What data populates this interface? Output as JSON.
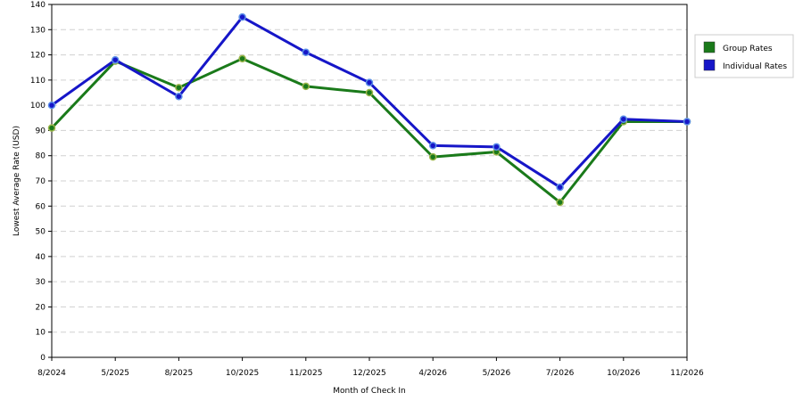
{
  "chart_data": {
    "type": "line",
    "title": "",
    "xlabel": "Month of Check In",
    "ylabel": "Lowest Average Rate (USD)",
    "categories": [
      "8/2024",
      "5/2025",
      "8/2025",
      "10/2025",
      "11/2025",
      "12/2025",
      "4/2026",
      "5/2026",
      "7/2026",
      "10/2026",
      "11/2026"
    ],
    "ylim": [
      0,
      140
    ],
    "yticks": [
      0,
      10,
      20,
      30,
      40,
      50,
      60,
      70,
      80,
      90,
      100,
      110,
      120,
      130,
      140
    ],
    "grid": true,
    "legend_position": "right",
    "series": [
      {
        "name": "Group Rates",
        "color": "#1a7a1a",
        "values": [
          91,
          117.5,
          107,
          118.5,
          107.5,
          105,
          79.5,
          81.5,
          61.5,
          93.5,
          93.5
        ]
      },
      {
        "name": "Individual Rates",
        "color": "#1616c8",
        "values": [
          100,
          118,
          103.5,
          135,
          121,
          109,
          84,
          83.5,
          67.5,
          94.5,
          93.5
        ]
      }
    ]
  }
}
